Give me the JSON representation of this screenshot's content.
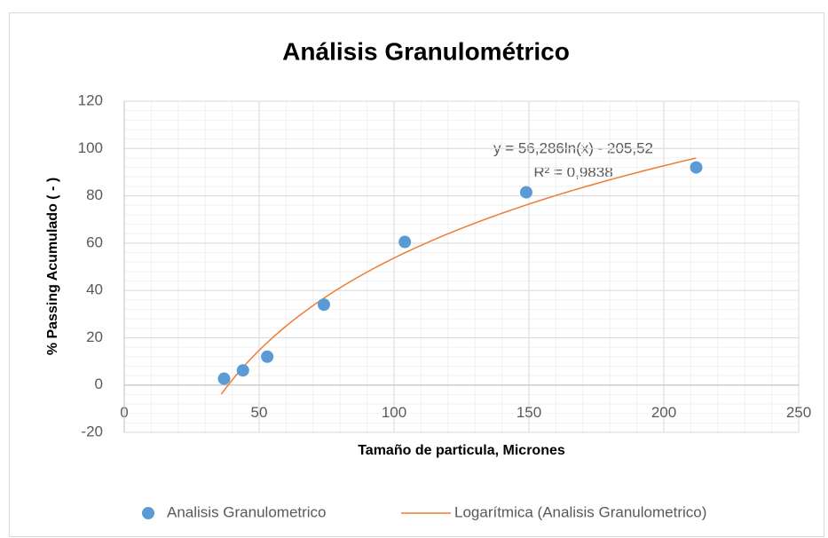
{
  "chart_data": {
    "type": "scatter",
    "title": "Análisis Granulométrico",
    "x_label": "Tamaño de particula, Micrones",
    "y_label": "% Passing  Acumulado ( - )",
    "series": [
      {
        "name": "Analisis Granulometrico",
        "color": "#5b9bd5",
        "x": [
          37,
          44,
          53,
          74,
          104,
          149,
          212
        ],
        "values": [
          2.7,
          6.2,
          12,
          34,
          60.5,
          81.5,
          92
        ]
      }
    ],
    "trendline": {
      "name": "Logarítmica (Analisis Granulometrico)",
      "color": "#ed7d31",
      "type": "log",
      "a": 56.286,
      "b": -205.52,
      "x_range": [
        36,
        212
      ]
    },
    "annotations": [
      "y = 56,286ln(x) - 205,52",
      "R² = 0,9838"
    ],
    "xlim": [
      0,
      250
    ],
    "xticks": [
      0,
      50,
      100,
      150,
      200,
      250
    ],
    "ylim": [
      -20,
      120
    ],
    "yticks": [
      -20,
      0,
      20,
      40,
      60,
      80,
      100,
      120
    ],
    "grid": true,
    "minor_grid": true,
    "legend": "bottom"
  }
}
